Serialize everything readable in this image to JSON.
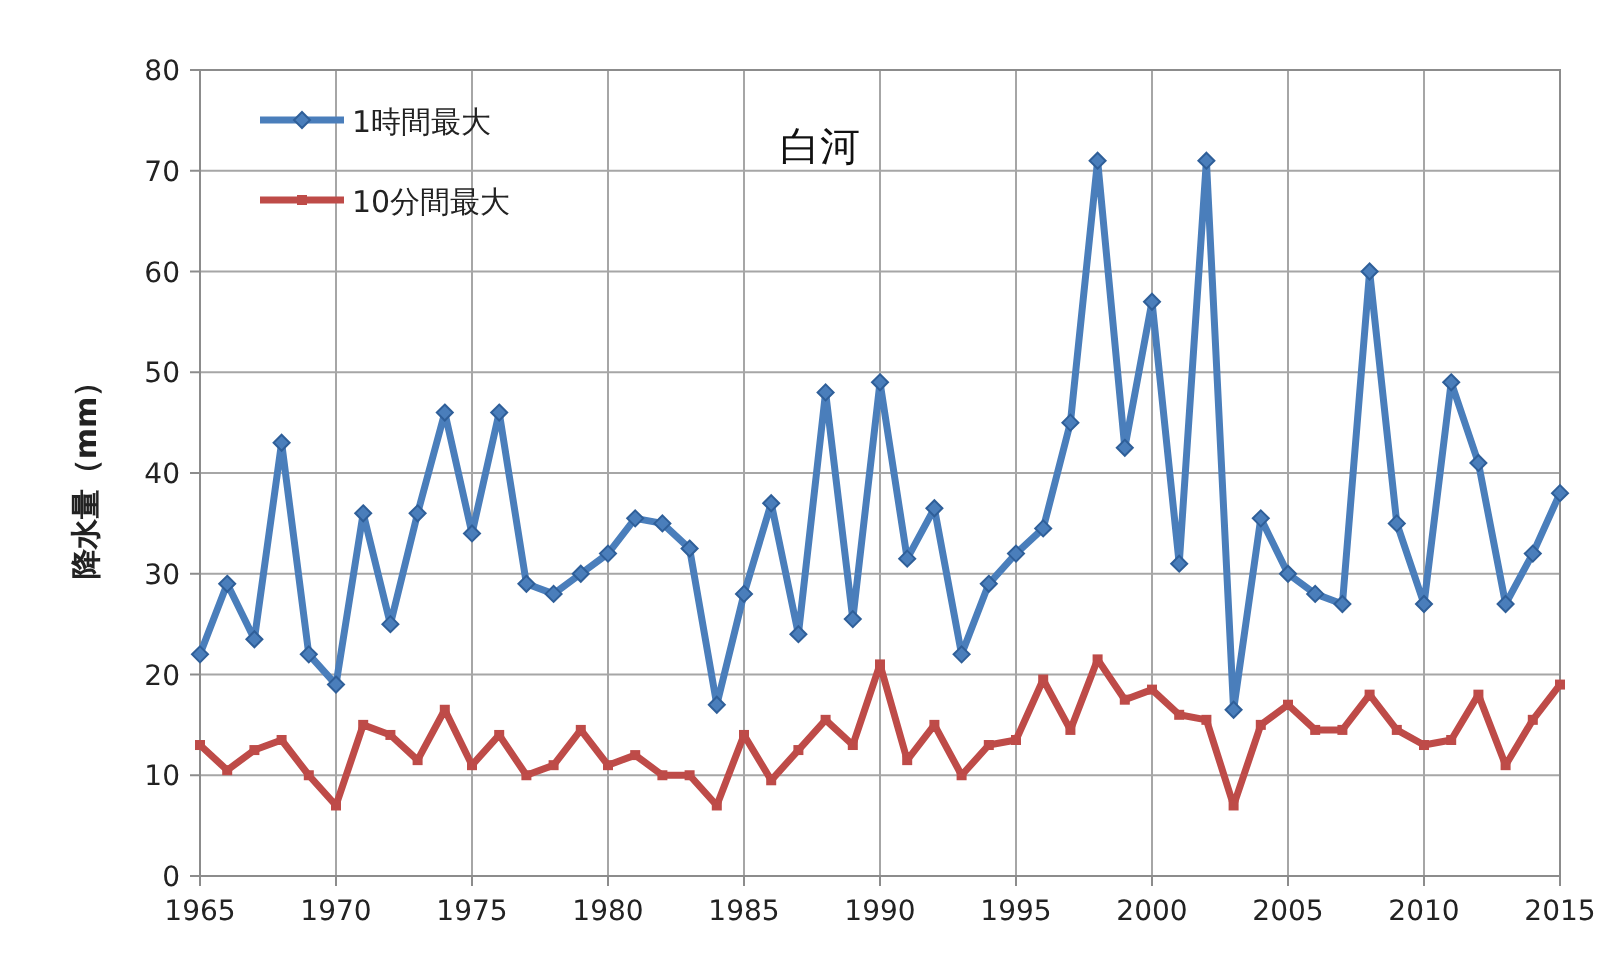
{
  "chart_data": {
    "type": "line",
    "title": "白河",
    "ylabel": "降水量（mm）",
    "x": [
      1965,
      1966,
      1967,
      1968,
      1969,
      1970,
      1971,
      1972,
      1973,
      1974,
      1975,
      1976,
      1977,
      1978,
      1979,
      1980,
      1981,
      1982,
      1983,
      1984,
      1985,
      1986,
      1987,
      1988,
      1989,
      1990,
      1991,
      1992,
      1993,
      1994,
      1995,
      1996,
      1997,
      1998,
      1999,
      2000,
      2001,
      2002,
      2003,
      2004,
      2005,
      2006,
      2007,
      2008,
      2009,
      2010,
      2011,
      2012,
      2013,
      2014,
      2015
    ],
    "series": [
      {
        "name": "1時間最大",
        "color": "#4a7ebb",
        "marker": "diamond",
        "values": [
          22,
          29,
          23.5,
          43,
          22,
          19,
          36,
          25,
          36,
          46,
          34,
          46,
          29,
          28,
          30,
          32,
          35.5,
          35,
          32.5,
          17,
          28,
          37,
          24,
          48,
          25.5,
          49,
          31.5,
          36.5,
          22,
          29,
          32,
          34.5,
          45,
          71,
          42.5,
          57,
          31,
          71,
          16.5,
          35.5,
          30,
          28,
          27,
          60,
          35,
          27,
          49,
          41,
          27,
          32,
          38
        ]
      },
      {
        "name": "10分間最大",
        "color": "#be4b48",
        "marker": "square",
        "values": [
          13,
          10.5,
          12.5,
          13.5,
          10,
          7,
          15,
          14,
          11.5,
          16.5,
          11,
          14,
          10,
          11,
          14.5,
          11,
          12,
          10,
          10,
          7,
          14,
          9.5,
          12.5,
          15.5,
          13,
          21,
          11.5,
          15,
          10,
          13,
          13.5,
          19.5,
          14.5,
          21.5,
          17.5,
          18.5,
          16,
          15.5,
          7,
          15,
          17,
          14.5,
          14.5,
          18,
          14.5,
          13,
          13.5,
          18,
          11,
          15.5,
          19
        ]
      }
    ],
    "xlim": [
      1965,
      2015
    ],
    "xticks": [
      1965,
      1970,
      1975,
      1980,
      1985,
      1990,
      1995,
      2000,
      2005,
      2010,
      2015
    ],
    "ylim": [
      0,
      80
    ],
    "yticks": [
      0,
      10,
      20,
      30,
      40,
      50,
      60,
      70,
      80
    ],
    "grid": true,
    "legend": "top left",
    "line_style": "solid"
  }
}
